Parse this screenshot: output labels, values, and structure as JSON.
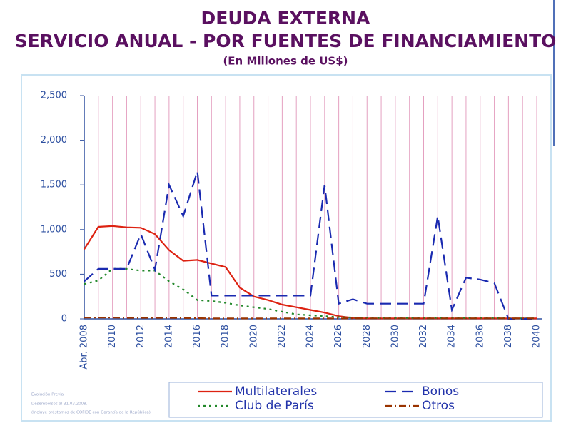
{
  "chart_data": {
    "type": "line",
    "title": "DEUDA EXTERNA",
    "subtitle": "SERVICIO ANUAL - POR FUENTES DE FINANCIAMIENTO",
    "units": "(En Millones de US$)",
    "notes": [
      "Evolución Previa",
      "Desembolsos al 31.03.2008.",
      "(Incluye préstamos de COFIDE con Garantía de la República)"
    ],
    "categories": [
      "Abr. 2008",
      null,
      "2010",
      null,
      "2012",
      null,
      "2014",
      null,
      "2016",
      null,
      "2018",
      null,
      "2020",
      null,
      "2022",
      null,
      "2024",
      null,
      "2026",
      null,
      "2028",
      null,
      "2030",
      null,
      "2032",
      null,
      "2034",
      null,
      "2036",
      null,
      "2038",
      null,
      "2040"
    ],
    "ylim": [
      0,
      2500
    ],
    "yticks": [
      0,
      500,
      {
        "value": 1000,
        "label": "1,000"
      },
      {
        "value": 1500,
        "label": "1,500"
      },
      {
        "value": 2000,
        "label": "2,000"
      },
      {
        "value": 2500,
        "label": "2,500"
      }
    ],
    "legend": "bottom",
    "series": [
      {
        "name": "Multilaterales",
        "color": "#dd2211",
        "dash": "none",
        "values": [
          780,
          1030,
          1040,
          1025,
          1020,
          950,
          770,
          650,
          660,
          620,
          580,
          350,
          250,
          210,
          160,
          130,
          100,
          70,
          30,
          10,
          5,
          5,
          5,
          5,
          5,
          5,
          5,
          5,
          5,
          5,
          5,
          5,
          5
        ]
      },
      {
        "name": "Club de París",
        "color": "#22882a",
        "dash": "3,5",
        "values": [
          390,
          430,
          560,
          560,
          540,
          540,
          420,
          330,
          210,
          200,
          180,
          150,
          130,
          110,
          80,
          50,
          40,
          30,
          20,
          15,
          15,
          10,
          10,
          10,
          10,
          10,
          10,
          10,
          10,
          10,
          5,
          5,
          5
        ]
      },
      {
        "name": "Bonos",
        "color": "#1a2ab0",
        "dash": "16,8",
        "values": [
          420,
          560,
          560,
          560,
          950,
          550,
          1500,
          1150,
          1650,
          260,
          260,
          260,
          260,
          260,
          260,
          260,
          260,
          1500,
          170,
          220,
          170,
          170,
          170,
          170,
          170,
          1150,
          100,
          460,
          440,
          400,
          0,
          0,
          0
        ]
      },
      {
        "name": "Otros",
        "color": "#993300",
        "dash": "10,4,2,4",
        "values": [
          15,
          15,
          15,
          12,
          12,
          12,
          12,
          10,
          8,
          5,
          5,
          5,
          5,
          5,
          5,
          5,
          5,
          5,
          5,
          5,
          5,
          5,
          5,
          5,
          5,
          5,
          5,
          5,
          5,
          5,
          5,
          5,
          5
        ]
      }
    ]
  }
}
